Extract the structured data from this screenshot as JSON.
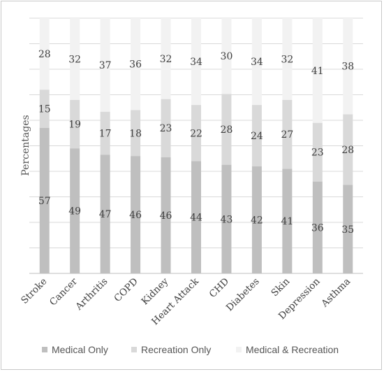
{
  "chart_data": {
    "type": "bar",
    "stacked": true,
    "percent_stacked": true,
    "title": "",
    "xlabel": "",
    "ylabel": "Percentages",
    "ylim": [
      0,
      100
    ],
    "grid": true,
    "legend_position": "bottom",
    "categories": [
      "Stroke",
      "Cancer",
      "Arthritis",
      "COPD",
      "Kidney",
      "Heart Attack",
      "CHD",
      "Diabetes",
      "Skin",
      "Depression",
      "Asthma"
    ],
    "series": [
      {
        "name": "Medical Only",
        "color": "#bfbfbf",
        "values": [
          57,
          49,
          47,
          46,
          46,
          44,
          43,
          42,
          41,
          36,
          35
        ]
      },
      {
        "name": "Recreation Only",
        "color": "#d9d9d9",
        "values": [
          15,
          19,
          17,
          18,
          23,
          22,
          28,
          24,
          27,
          23,
          28
        ]
      },
      {
        "name": "Medical & Recreation",
        "color": "#f2f2f2",
        "values": [
          28,
          32,
          37,
          36,
          32,
          34,
          30,
          34,
          32,
          41,
          38
        ]
      }
    ]
  }
}
